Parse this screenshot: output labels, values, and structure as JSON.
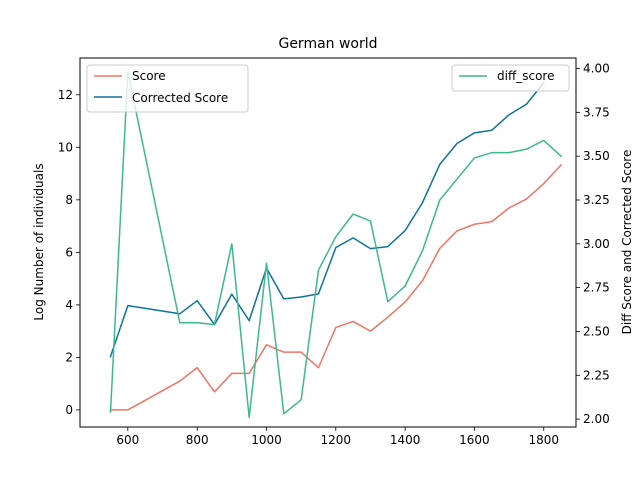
{
  "chart_data": {
    "type": "line",
    "title": "German world",
    "xlabel": "",
    "ylabel_left": "Log Number of individuals",
    "ylabel_right": "Diff Score and Corrected Score",
    "xlim": [
      462,
      1893
    ],
    "ylim_left": [
      -0.65,
      13.4
    ],
    "ylim_right": [
      1.955,
      4.06
    ],
    "x_ticks": [
      600,
      800,
      1000,
      1200,
      1400,
      1600,
      1800
    ],
    "y_ticks_left": [
      0,
      2,
      4,
      6,
      8,
      10,
      12
    ],
    "y_ticks_right": [
      2.0,
      2.25,
      2.5,
      2.75,
      3.0,
      3.25,
      3.5,
      3.75,
      4.0
    ],
    "y_tick_labels_right": [
      "2.00",
      "2.25",
      "2.50",
      "2.75",
      "3.00",
      "3.25",
      "3.50",
      "3.75",
      "4.00"
    ],
    "series": [
      {
        "name": "Score",
        "axis": "left",
        "color": "#f07464",
        "x": [
          550,
          600,
          750,
          800,
          850,
          900,
          950,
          1000,
          1050,
          1100,
          1150,
          1200,
          1250,
          1300,
          1350,
          1400,
          1450,
          1500,
          1550,
          1600,
          1650,
          1700,
          1750,
          1800,
          1850
        ],
        "values": [
          0.0,
          0.0,
          1.1,
          1.61,
          0.69,
          1.39,
          1.39,
          2.48,
          2.2,
          2.2,
          1.61,
          3.14,
          3.37,
          3.0,
          3.53,
          4.11,
          4.92,
          6.15,
          6.82,
          7.07,
          7.17,
          7.69,
          8.03,
          8.62,
          9.33
        ]
      },
      {
        "name": "Corrected Score",
        "axis": "left",
        "color": "#0e7499",
        "x": [
          550,
          600,
          750,
          800,
          850,
          900,
          950,
          1000,
          1050,
          1100,
          1150,
          1200,
          1250,
          1300,
          1350,
          1400,
          1450,
          1500,
          1550,
          1600,
          1650,
          1700,
          1750,
          1800
        ],
        "values": [
          2.03,
          3.97,
          3.66,
          4.16,
          3.25,
          4.41,
          3.4,
          5.4,
          4.23,
          4.3,
          4.42,
          6.18,
          6.55,
          6.14,
          6.22,
          6.83,
          7.89,
          9.35,
          10.15,
          10.55,
          10.65,
          11.24,
          11.64,
          12.46
        ]
      },
      {
        "name": "diff_score",
        "axis": "right",
        "color": "#3cb98f",
        "x": [
          550,
          600,
          750,
          800,
          850,
          900,
          950,
          1000,
          1050,
          1100,
          1150,
          1200,
          1250,
          1300,
          1350,
          1400,
          1450,
          1500,
          1550,
          1600,
          1650,
          1700,
          1750,
          1800,
          1850
        ],
        "values": [
          2.04,
          3.98,
          2.55,
          2.55,
          2.54,
          3.0,
          2.01,
          2.89,
          2.03,
          2.11,
          2.85,
          3.04,
          3.17,
          3.13,
          2.67,
          2.76,
          2.96,
          3.25,
          3.37,
          3.49,
          3.52,
          3.52,
          3.54,
          3.59,
          3.5
        ]
      }
    ],
    "legend_left": {
      "placement": "upper left",
      "entries": [
        "Score",
        "Corrected Score"
      ]
    },
    "legend_right": {
      "placement": "upper right",
      "entries": [
        "diff_score"
      ]
    },
    "grid": false
  }
}
